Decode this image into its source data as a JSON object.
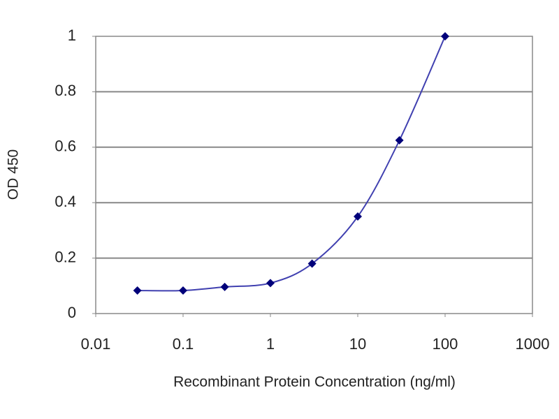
{
  "chart_data": {
    "type": "line",
    "x_label": "Recombinant Protein Concentration (ng/ml)",
    "y_label": "OD 450",
    "x": [
      0.03,
      0.1,
      0.3,
      1,
      3,
      10,
      30,
      100
    ],
    "series": [
      {
        "color": "#00007a",
        "line_color": "#4040b0",
        "values": [
          0.083,
          0.083,
          0.096,
          0.11,
          0.18,
          0.35,
          0.625,
          1.0
        ]
      }
    ],
    "xscale": "log",
    "xlim": [
      0.01,
      1000
    ],
    "xticks": [
      0.01,
      0.1,
      1,
      10,
      100,
      1000
    ],
    "ylim": [
      0,
      1
    ],
    "yticks": [
      0,
      0.2,
      0.4,
      0.6,
      0.8,
      1
    ],
    "grid": true,
    "smooth": true,
    "marker": "diamond"
  }
}
